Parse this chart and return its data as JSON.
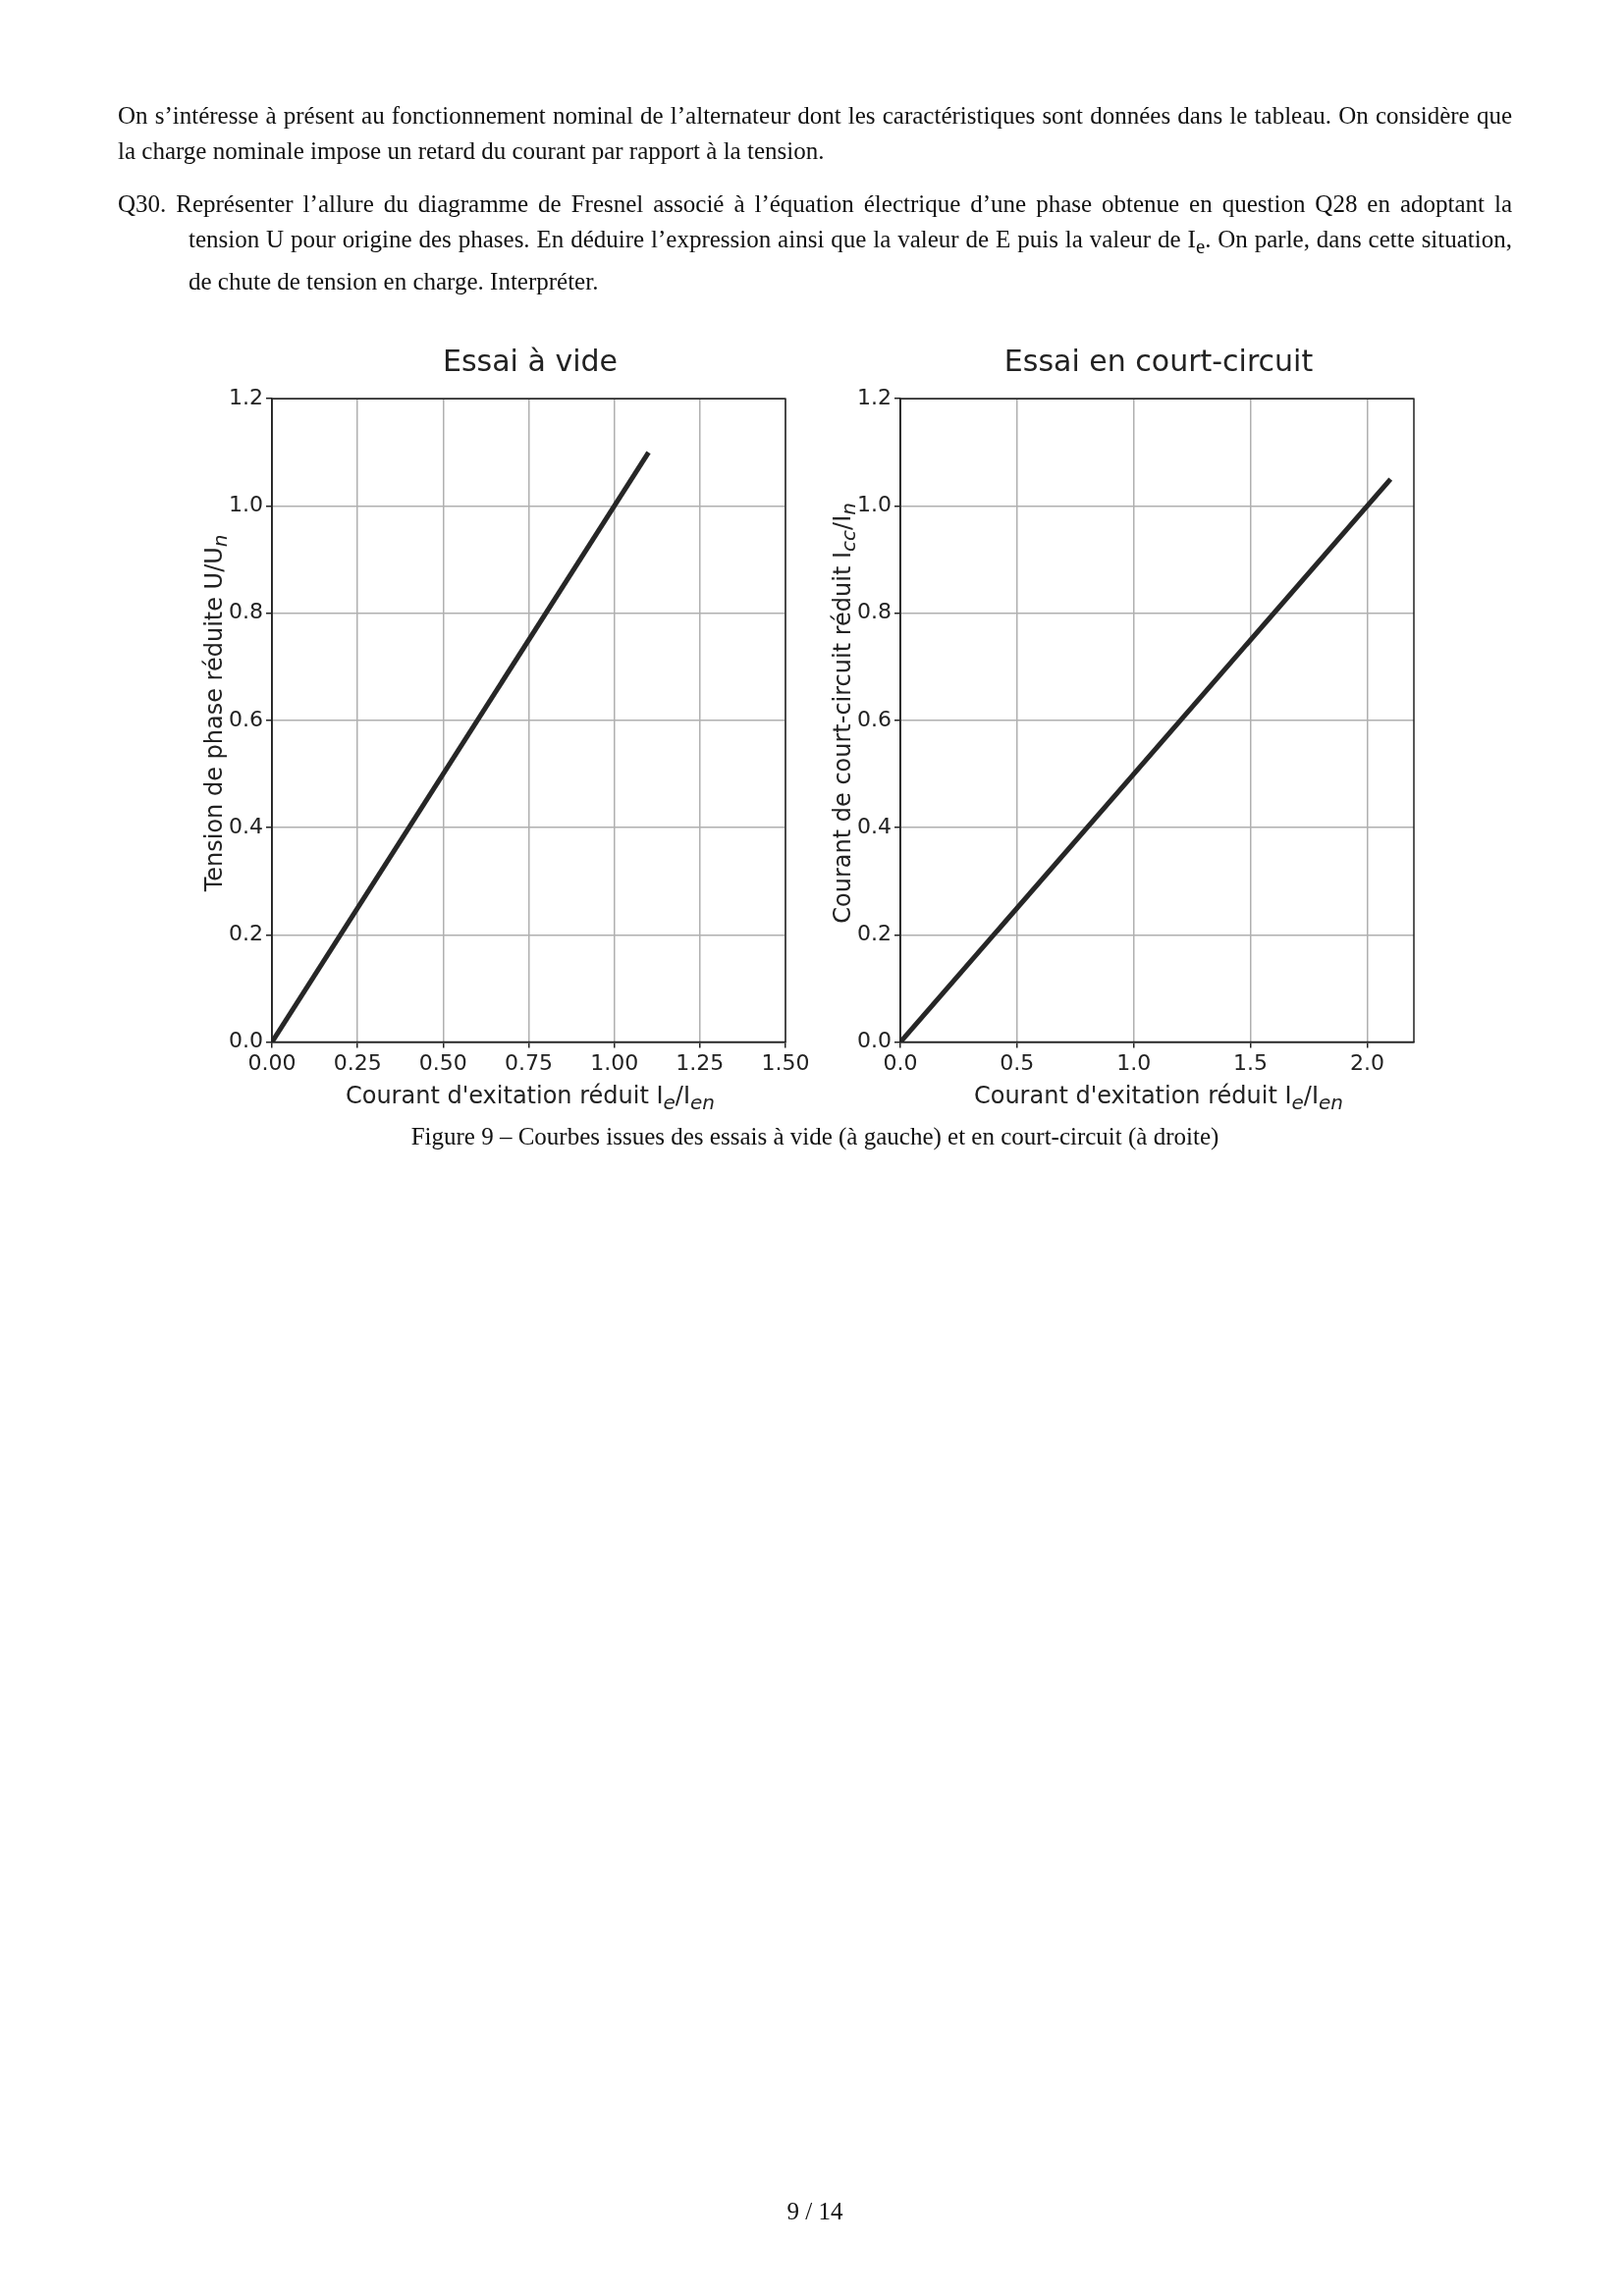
{
  "chart_data": [
    {
      "type": "line",
      "title": "Essai à vide",
      "xlabel": "Courant d'exitation réduit  I$_{e}$/I$_{en}$",
      "ylabel": "Tension de phase réduite  U/U$_{n}$",
      "x": [
        0,
        1.1
      ],
      "series": [
        {
          "color": "#262626",
          "values": [
            0,
            1.1
          ]
        }
      ],
      "xlim": [
        0,
        1.5
      ],
      "xticks": [
        {
          "value": 0,
          "label": "0.00"
        },
        {
          "value": 0.25,
          "label": "0.25"
        },
        {
          "value": 0.5,
          "label": "0.50"
        },
        {
          "value": 0.75,
          "label": "0.75"
        },
        {
          "value": 1,
          "label": "1.00"
        },
        {
          "value": 1.25,
          "label": "1.25"
        },
        {
          "value": 1.5,
          "label": "1.50"
        }
      ],
      "ylim": [
        0,
        1.2
      ],
      "yticks": [
        {
          "value": 0,
          "label": "0.0"
        },
        {
          "value": 0.2,
          "label": "0.2"
        },
        {
          "value": 0.4,
          "label": "0.4"
        },
        {
          "value": 0.6,
          "label": "0.6"
        },
        {
          "value": 0.8,
          "label": "0.8"
        },
        {
          "value": 1,
          "label": "1.0"
        },
        {
          "value": 1.2,
          "label": "1.2"
        }
      ],
      "grid": true,
      "annotations": [
        "On s’intéresse à présent au fonctionnement nominal de l’alternateur dont les caractéristiques sont données dans le tableau. On considère que la charge nominale impose un retard du courant par rapport à la tension.",
        "Q30. Représenter l’allure du diagramme de Fresnel associé à l’équation électrique d’une phase obtenue en question Q28 en adoptant la tension U pour origine des phases. En déduire l’expression ainsi que la valeur de E puis la valeur de I$_{e}$. On parle, dans cette situation, de chute de tension en charge. Interpréter.",
        "Figure 9 – Courbes issues des essais à vide (à gauche) et en court-circuit (à droite)"
      ]
    },
    {
      "type": "line",
      "title": "Essai en court-circuit",
      "xlabel": "Courant d'exitation réduit  I$_{e}$/I$_{en}$",
      "ylabel": "Courant de court-circuit réduit  I$_{cc}$/I$_{n}$",
      "x": [
        0,
        2.1
      ],
      "series": [
        {
          "color": "#262626",
          "values": [
            0,
            1.05
          ]
        }
      ],
      "xlim": [
        0,
        2.2
      ],
      "xticks": [
        {
          "value": 0,
          "label": "0.0"
        },
        {
          "value": 0.5,
          "label": "0.5"
        },
        {
          "value": 1,
          "label": "1.0"
        },
        {
          "value": 1.5,
          "label": "1.5"
        },
        {
          "value": 2,
          "label": "2.0"
        }
      ],
      "ylim": [
        0,
        1.2
      ],
      "yticks": [
        {
          "value": 0,
          "label": "0.0"
        },
        {
          "value": 0.2,
          "label": "0.2"
        },
        {
          "value": 0.4,
          "label": "0.4"
        },
        {
          "value": 0.6,
          "label": "0.6"
        },
        {
          "value": 0.8,
          "label": "0.8"
        },
        {
          "value": 1,
          "label": "1.0"
        },
        {
          "value": 1.2,
          "label": "1.2"
        }
      ],
      "grid": true,
      "annotations": [
        "9 / 14"
      ]
    }
  ]
}
